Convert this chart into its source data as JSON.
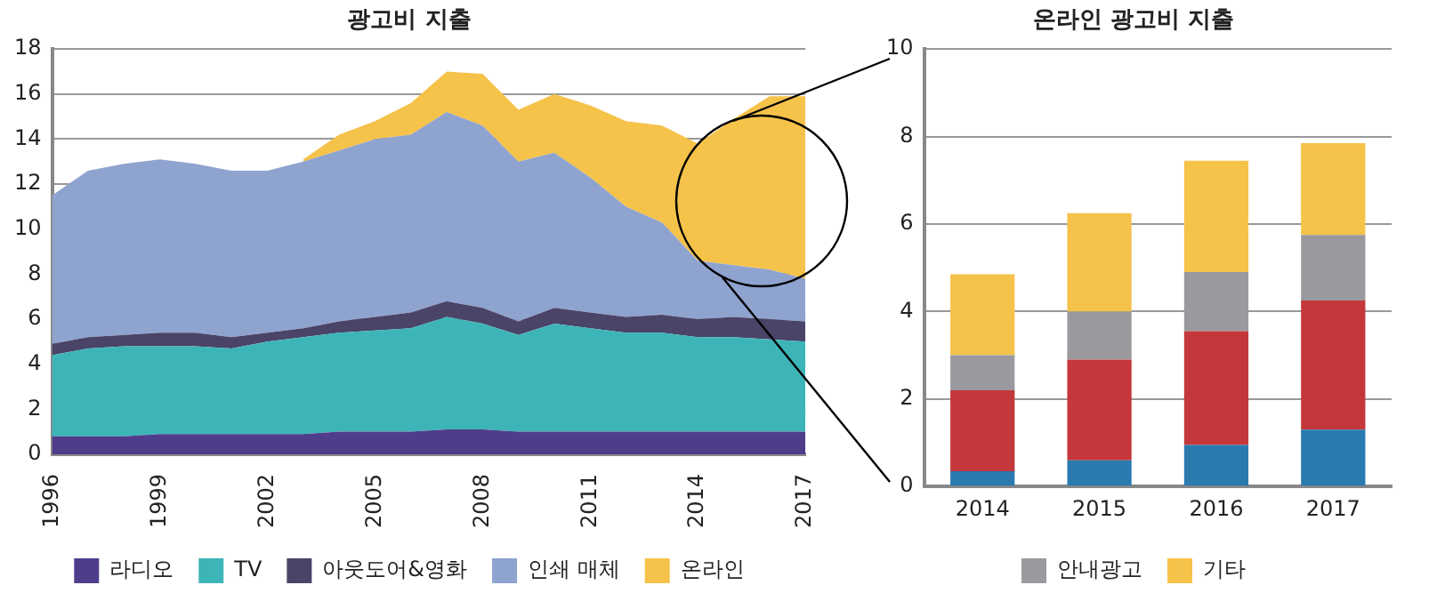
{
  "chart_data": [
    {
      "type": "area",
      "title": "광고비 지출",
      "stacked": true,
      "x": [
        1996,
        1997,
        1998,
        1999,
        2000,
        2001,
        2002,
        2003,
        2004,
        2005,
        2006,
        2007,
        2008,
        2009,
        2010,
        2011,
        2012,
        2013,
        2014,
        2015,
        2016,
        2017
      ],
      "xlim": [
        1996,
        2017
      ],
      "xticks": [
        1996,
        1999,
        2002,
        2005,
        2008,
        2011,
        2014,
        2017
      ],
      "ylim": [
        0,
        18
      ],
      "yticks": [
        0,
        2,
        4,
        6,
        8,
        10,
        12,
        14,
        16,
        18
      ],
      "grid": "y",
      "legend": "bottom",
      "series": [
        {
          "name": "라디오",
          "color": "#4f3d8c",
          "values": [
            0.8,
            0.8,
            0.8,
            0.9,
            0.9,
            0.9,
            0.9,
            0.9,
            1.0,
            1.0,
            1.0,
            1.1,
            1.1,
            1.0,
            1.0,
            1.0,
            1.0,
            1.0,
            1.0,
            1.0,
            1.0,
            1.0
          ]
        },
        {
          "name": "TV",
          "color": "#3db5b8",
          "values": [
            3.6,
            3.9,
            4.0,
            3.9,
            3.9,
            3.8,
            4.1,
            4.3,
            4.4,
            4.5,
            4.6,
            5.0,
            4.7,
            4.3,
            4.8,
            4.6,
            4.4,
            4.4,
            4.2,
            4.2,
            4.1,
            4.0
          ]
        },
        {
          "name": "아웃도어&영화",
          "color": "#4a4468",
          "values": [
            0.5,
            0.5,
            0.5,
            0.6,
            0.6,
            0.5,
            0.4,
            0.4,
            0.5,
            0.6,
            0.7,
            0.7,
            0.7,
            0.6,
            0.7,
            0.7,
            0.7,
            0.8,
            0.8,
            0.9,
            0.9,
            0.9
          ]
        },
        {
          "name": "인쇄 매체",
          "color": "#8fa3cf",
          "values": [
            6.6,
            7.4,
            7.6,
            7.7,
            7.5,
            7.4,
            7.2,
            7.4,
            7.6,
            7.9,
            7.9,
            8.4,
            8.1,
            7.1,
            6.9,
            6.0,
            4.9,
            4.1,
            2.6,
            2.3,
            2.2,
            1.9
          ]
        },
        {
          "name": "온라인",
          "color": "#f5c24a",
          "values": [
            null,
            null,
            null,
            null,
            null,
            null,
            null,
            0.1,
            0.7,
            0.8,
            1.4,
            1.8,
            2.3,
            2.3,
            2.6,
            3.2,
            3.8,
            4.3,
            5.2,
            6.5,
            7.7,
            8.1
          ]
        }
      ]
    },
    {
      "type": "bar",
      "title": "온라인 광고비 지출",
      "stacked": true,
      "categories": [
        "2014",
        "2015",
        "2016",
        "2017"
      ],
      "ylim": [
        0,
        10
      ],
      "yticks": [
        0,
        2,
        4,
        6,
        8,
        10
      ],
      "grid": "y",
      "legend": "bottom",
      "series": [
        {
          "color": "#2a7ab0",
          "values": [
            0.35,
            0.6,
            0.95,
            1.3
          ]
        },
        {
          "color": "#c4373a",
          "values": [
            1.85,
            2.3,
            2.6,
            2.95
          ]
        },
        {
          "name": "안내광고",
          "color": "#9a999e",
          "values": [
            0.8,
            1.1,
            1.35,
            1.5
          ]
        },
        {
          "name": "기타",
          "color": "#f5c24a",
          "values": [
            1.85,
            2.25,
            2.55,
            2.1
          ]
        }
      ]
    }
  ]
}
